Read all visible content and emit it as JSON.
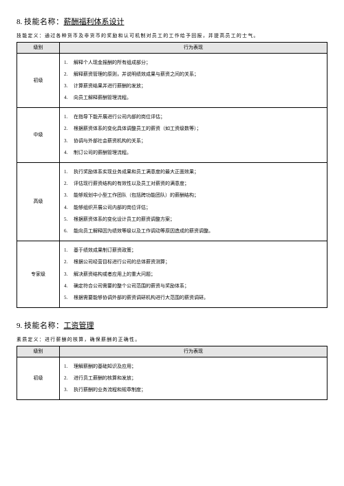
{
  "skill8": {
    "number": "8.",
    "label": "技能名称：",
    "name": "薪酬福利体系设计",
    "definition_label": "技能定义：",
    "definition": "通过各种货币及非货币的奖励和认可机制对员工的工作给予回报，并提高员工的士气。",
    "headers": {
      "level": "级别",
      "behavior": "行为表现"
    },
    "rows": [
      {
        "level": "初级",
        "items": [
          "解释个人现金报酬的所有组成部分；",
          "解释薪资管理的原则，并说明绩效成果与薪资之间的关系；",
          "计算薪资结果并进行薪酬的发放；",
          "向员工解释薪酬管理流程。"
        ]
      },
      {
        "level": "中级",
        "items": [
          "在指导下能开展进行公司内部的岗位评估；",
          "根据薪资体系的变化具体调整员工的薪资（如工资级数等）；",
          "协调与外部社会薪资机构的关系；",
          "制订公司的薪酬管理流程。"
        ]
      },
      {
        "level": "高级",
        "items": [
          "执行奖励体系实现业务成果和员工满意度的最大正面效果；",
          "评估现行薪资结构的有效性以及员工对薪资的满意度；",
          "能够规划中小型工作团队（包括跨功能团队）的薪酬结构；",
          "能够组织开展公司内部的岗位评估；",
          "根据薪资体系的变化设计员工的薪资调整方案；",
          "能向员工解释因为绩效等级以及工作调动等原因造成的薪资调整。"
        ]
      },
      {
        "level": "专家级",
        "items": [
          "基于绩效成果制订薪资政策；",
          "根据公司经营目标进行公司的总体薪资测算；",
          "解决薪资结构或者应用上的重大问题；",
          "确定符合公司需要的整个公司范围的薪资与奖励体系；",
          "根据需要能够协调外部的薪资调研机构进行大范围的薪资调研。"
        ]
      }
    ]
  },
  "skill9": {
    "number": "9.",
    "label": "技能名称：",
    "name": "工资管理",
    "definition_label": "素质定义：",
    "definition": "进行薪酬的核算，确保薪酬的正确性。",
    "headers": {
      "level": "级别",
      "behavior": "行为表现"
    },
    "rows": [
      {
        "level": "初级",
        "items": [
          "理解薪酬的基础知识及应用；",
          "进行员工薪酬的核算和发放；",
          "执行薪酬的业务流程和规章制度；"
        ]
      }
    ]
  }
}
